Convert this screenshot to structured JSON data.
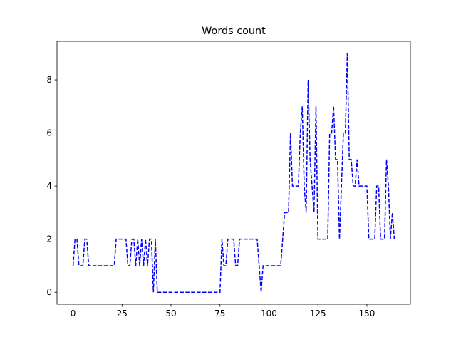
{
  "chart_data": {
    "type": "line",
    "title": "Words count",
    "x": [
      0,
      1,
      2,
      3,
      4,
      5,
      6,
      7,
      8,
      9,
      10,
      11,
      12,
      13,
      14,
      15,
      16,
      17,
      18,
      19,
      20,
      21,
      22,
      23,
      24,
      25,
      26,
      27,
      28,
      29,
      30,
      31,
      32,
      33,
      34,
      35,
      36,
      37,
      38,
      39,
      40,
      41,
      42,
      43,
      44,
      45,
      46,
      47,
      48,
      49,
      50,
      51,
      52,
      53,
      54,
      55,
      56,
      57,
      58,
      59,
      60,
      61,
      62,
      63,
      64,
      65,
      66,
      67,
      68,
      69,
      70,
      71,
      72,
      73,
      74,
      75,
      76,
      77,
      78,
      79,
      80,
      81,
      82,
      83,
      84,
      85,
      86,
      87,
      88,
      89,
      90,
      91,
      92,
      93,
      94,
      95,
      96,
      97,
      98,
      99,
      100,
      101,
      102,
      103,
      104,
      105,
      106,
      107,
      108,
      109,
      110,
      111,
      112,
      113,
      114,
      115,
      116,
      117,
      118,
      119,
      120,
      121,
      122,
      123,
      124,
      125,
      126,
      127,
      128,
      129,
      130,
      131,
      132,
      133,
      134,
      135,
      136,
      137,
      138,
      139,
      140,
      141,
      142,
      143,
      144,
      145,
      146,
      147,
      148,
      149,
      150,
      151,
      152,
      153,
      154,
      155,
      156,
      157,
      158,
      159,
      160,
      161,
      162,
      163,
      164
    ],
    "series": [
      {
        "color": "#0000ff",
        "values": [
          1,
          2,
          2,
          1,
          1,
          1,
          2,
          2,
          1,
          1,
          1,
          1,
          1,
          1,
          1,
          1,
          1,
          1,
          1,
          1,
          1,
          1,
          2,
          2,
          2,
          2,
          2,
          2,
          1,
          1,
          2,
          2,
          1,
          2,
          1,
          2,
          1,
          2,
          1,
          2,
          2,
          0,
          2,
          0,
          0,
          0,
          0,
          0,
          0,
          0,
          0,
          0,
          0,
          0,
          0,
          0,
          0,
          0,
          0,
          0,
          0,
          0,
          0,
          0,
          0,
          0,
          0,
          0,
          0,
          0,
          0,
          0,
          0,
          0,
          0,
          0,
          2,
          1,
          1,
          2,
          2,
          2,
          2,
          1,
          1,
          2,
          2,
          2,
          2,
          2,
          2,
          2,
          2,
          2,
          2,
          1,
          0,
          1,
          1,
          1,
          1,
          1,
          1,
          1,
          1,
          1,
          1,
          2,
          3,
          3,
          3,
          6,
          4,
          4,
          4,
          4,
          6,
          7,
          4,
          3,
          8,
          5,
          4,
          3,
          7,
          2,
          2,
          2,
          2,
          2,
          2,
          6,
          6,
          7,
          5,
          5,
          2,
          4,
          6,
          6,
          9,
          5,
          5,
          4,
          4,
          5,
          4,
          4,
          4,
          4,
          4,
          2,
          2,
          2,
          2,
          4,
          4,
          2,
          2,
          2,
          5,
          4,
          2,
          3,
          2
        ]
      }
    ],
    "xlim": [
      -8.2,
      172.2
    ],
    "ylim": [
      -0.45,
      9.45
    ],
    "xticks": [
      0,
      25,
      50,
      75,
      100,
      125,
      150
    ],
    "yticks": [
      0,
      2,
      4,
      6,
      8
    ]
  }
}
